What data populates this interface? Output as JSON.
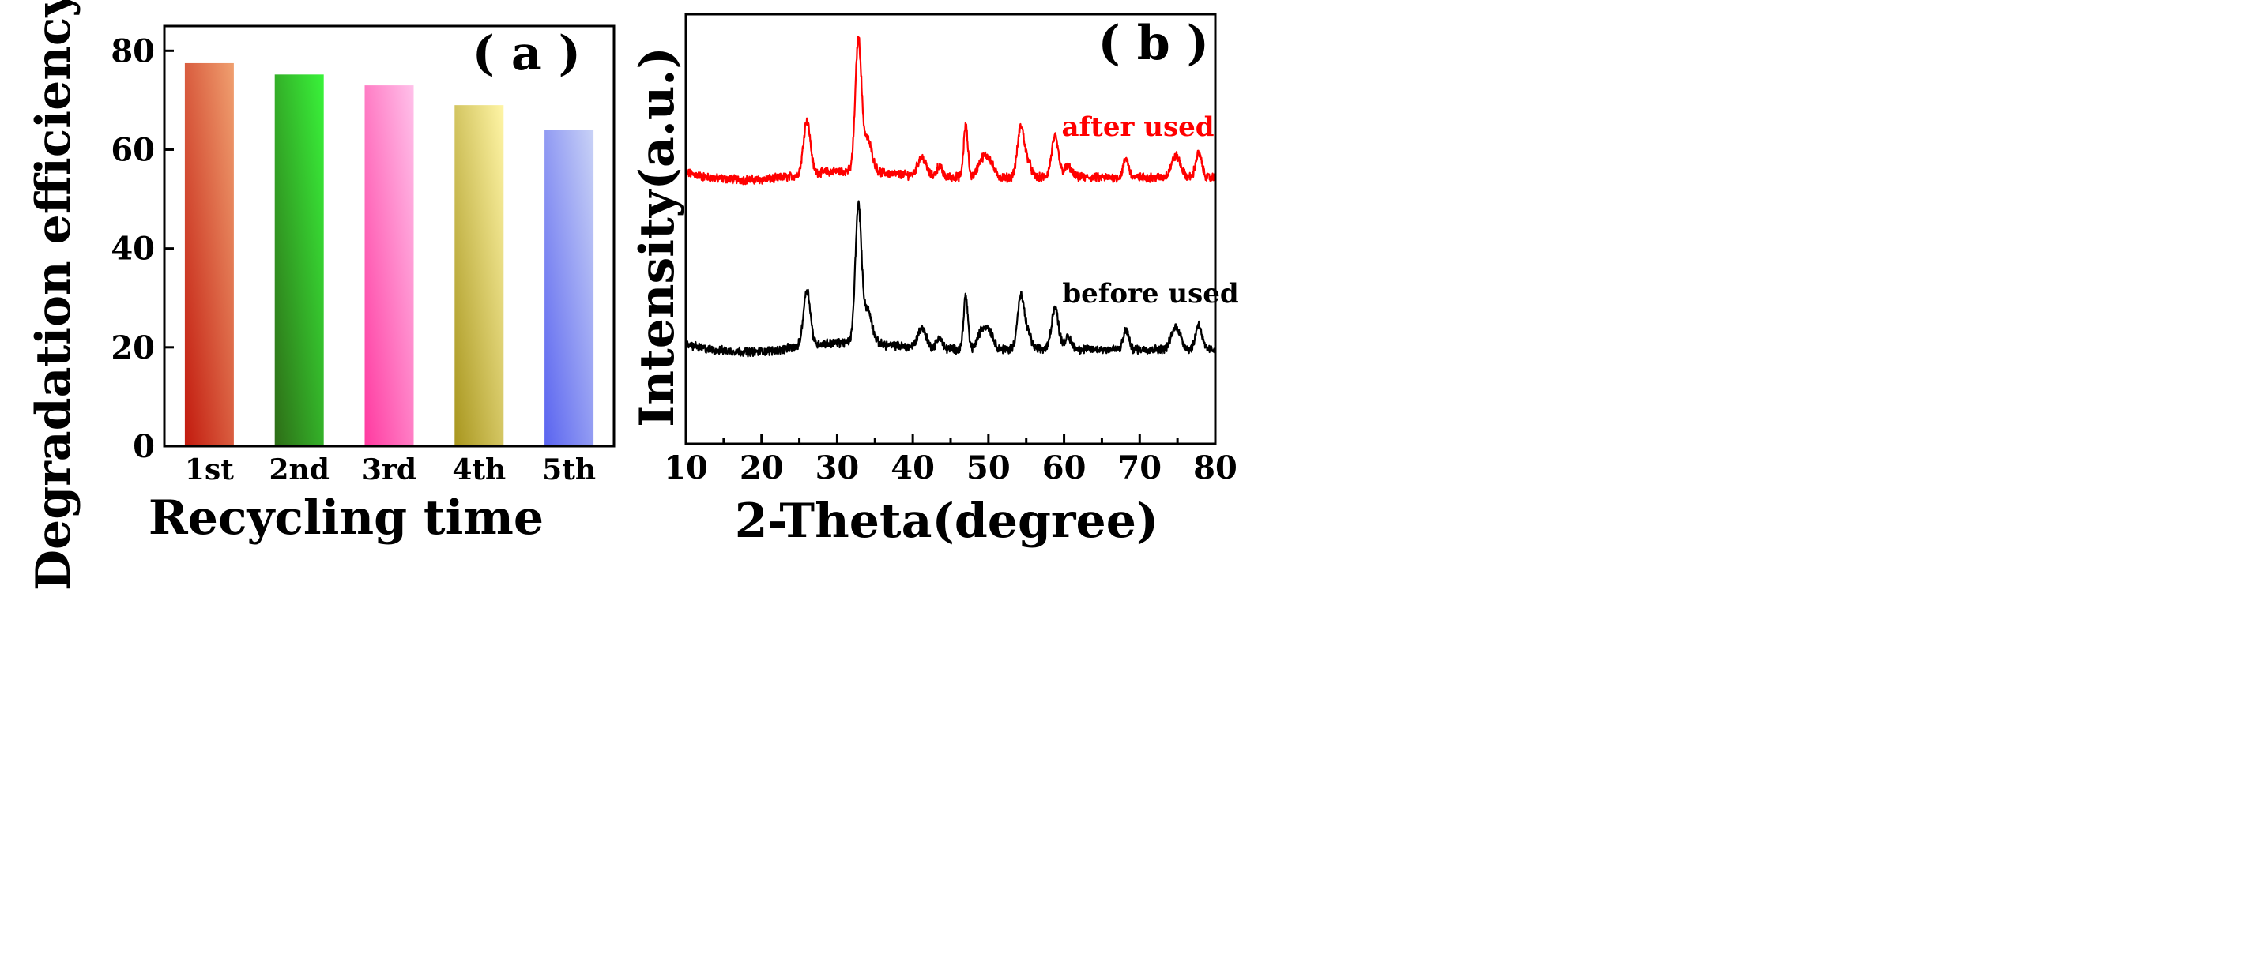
{
  "chart_data": [
    {
      "type": "bar",
      "panel_label": "( a )",
      "categories": [
        "1st",
        "2nd",
        "3rd",
        "4th",
        "5th"
      ],
      "values": [
        77.5,
        75.2,
        73.0,
        69.0,
        64.0
      ],
      "colors": [
        [
          "#c21a0e",
          "#f0a070"
        ],
        [
          "#2e6d17",
          "#39f33a"
        ],
        [
          "#ff3aa0",
          "#ffc1ea"
        ],
        [
          "#a8961e",
          "#fff5a6"
        ],
        [
          "#5a64f0",
          "#c9d2f6"
        ]
      ],
      "xlabel": "Recycling time",
      "ylabel": "Degradation efficiency (%)",
      "ylim": [
        0,
        85
      ],
      "yticks": [
        "0",
        "20",
        "40",
        "60",
        "80"
      ],
      "ytick_values": [
        0,
        20,
        40,
        60,
        80
      ]
    },
    {
      "type": "line",
      "panel_label": "( b )",
      "xlabel": "2-Theta(degree)",
      "ylabel": "Intensity(a.u.)",
      "xlim": [
        10,
        80
      ],
      "ylim": [
        0,
        100
      ],
      "xticks": [
        "10",
        "20",
        "30",
        "40",
        "50",
        "60",
        "70",
        "80"
      ],
      "xtick_values": [
        10,
        20,
        30,
        40,
        50,
        60,
        70,
        80
      ],
      "peaks": [
        [
          26.0,
          1.0,
          0.45
        ],
        [
          32.8,
          2.4,
          0.4
        ],
        [
          34.0,
          0.6,
          0.6
        ],
        [
          41.2,
          0.35,
          0.55
        ],
        [
          43.5,
          0.2,
          0.35
        ],
        [
          47.0,
          0.95,
          0.28
        ],
        [
          49.0,
          0.25,
          0.5
        ],
        [
          50.0,
          0.35,
          0.6
        ],
        [
          54.3,
          0.95,
          0.45
        ],
        [
          55.3,
          0.25,
          0.4
        ],
        [
          58.8,
          0.75,
          0.45
        ],
        [
          60.5,
          0.2,
          0.5
        ],
        [
          68.2,
          0.35,
          0.35
        ],
        [
          74.8,
          0.4,
          0.6
        ],
        [
          77.8,
          0.45,
          0.4
        ]
      ],
      "series": [
        {
          "name": "after used",
          "color": "#ff0000",
          "baseline": 62.0,
          "peak_scale": 12.5
        },
        {
          "name": "before used",
          "color": "#000000",
          "baseline": 22.0,
          "peak_scale": 13.0
        }
      ]
    }
  ]
}
